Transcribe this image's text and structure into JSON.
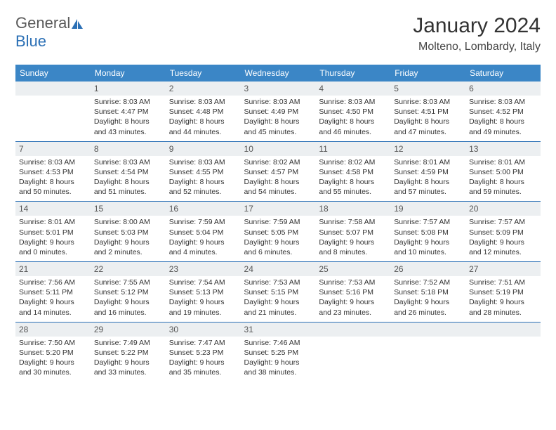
{
  "logo": {
    "t1": "General",
    "t2": "Blue"
  },
  "title": "January 2024",
  "location": "Molteno, Lombardy, Italy",
  "colors": {
    "header_bg": "#3b86c6",
    "header_text": "#ffffff",
    "daynum_bg": "#eceff1",
    "border": "#2a6fb5",
    "text": "#333333"
  },
  "weekdays": [
    "Sunday",
    "Monday",
    "Tuesday",
    "Wednesday",
    "Thursday",
    "Friday",
    "Saturday"
  ],
  "weeks": [
    [
      null,
      {
        "n": "1",
        "sr": "8:03 AM",
        "ss": "4:47 PM",
        "dl": "8 hours and 43 minutes."
      },
      {
        "n": "2",
        "sr": "8:03 AM",
        "ss": "4:48 PM",
        "dl": "8 hours and 44 minutes."
      },
      {
        "n": "3",
        "sr": "8:03 AM",
        "ss": "4:49 PM",
        "dl": "8 hours and 45 minutes."
      },
      {
        "n": "4",
        "sr": "8:03 AM",
        "ss": "4:50 PM",
        "dl": "8 hours and 46 minutes."
      },
      {
        "n": "5",
        "sr": "8:03 AM",
        "ss": "4:51 PM",
        "dl": "8 hours and 47 minutes."
      },
      {
        "n": "6",
        "sr": "8:03 AM",
        "ss": "4:52 PM",
        "dl": "8 hours and 49 minutes."
      }
    ],
    [
      {
        "n": "7",
        "sr": "8:03 AM",
        "ss": "4:53 PM",
        "dl": "8 hours and 50 minutes."
      },
      {
        "n": "8",
        "sr": "8:03 AM",
        "ss": "4:54 PM",
        "dl": "8 hours and 51 minutes."
      },
      {
        "n": "9",
        "sr": "8:03 AM",
        "ss": "4:55 PM",
        "dl": "8 hours and 52 minutes."
      },
      {
        "n": "10",
        "sr": "8:02 AM",
        "ss": "4:57 PM",
        "dl": "8 hours and 54 minutes."
      },
      {
        "n": "11",
        "sr": "8:02 AM",
        "ss": "4:58 PM",
        "dl": "8 hours and 55 minutes."
      },
      {
        "n": "12",
        "sr": "8:01 AM",
        "ss": "4:59 PM",
        "dl": "8 hours and 57 minutes."
      },
      {
        "n": "13",
        "sr": "8:01 AM",
        "ss": "5:00 PM",
        "dl": "8 hours and 59 minutes."
      }
    ],
    [
      {
        "n": "14",
        "sr": "8:01 AM",
        "ss": "5:01 PM",
        "dl": "9 hours and 0 minutes."
      },
      {
        "n": "15",
        "sr": "8:00 AM",
        "ss": "5:03 PM",
        "dl": "9 hours and 2 minutes."
      },
      {
        "n": "16",
        "sr": "7:59 AM",
        "ss": "5:04 PM",
        "dl": "9 hours and 4 minutes."
      },
      {
        "n": "17",
        "sr": "7:59 AM",
        "ss": "5:05 PM",
        "dl": "9 hours and 6 minutes."
      },
      {
        "n": "18",
        "sr": "7:58 AM",
        "ss": "5:07 PM",
        "dl": "9 hours and 8 minutes."
      },
      {
        "n": "19",
        "sr": "7:57 AM",
        "ss": "5:08 PM",
        "dl": "9 hours and 10 minutes."
      },
      {
        "n": "20",
        "sr": "7:57 AM",
        "ss": "5:09 PM",
        "dl": "9 hours and 12 minutes."
      }
    ],
    [
      {
        "n": "21",
        "sr": "7:56 AM",
        "ss": "5:11 PM",
        "dl": "9 hours and 14 minutes."
      },
      {
        "n": "22",
        "sr": "7:55 AM",
        "ss": "5:12 PM",
        "dl": "9 hours and 16 minutes."
      },
      {
        "n": "23",
        "sr": "7:54 AM",
        "ss": "5:13 PM",
        "dl": "9 hours and 19 minutes."
      },
      {
        "n": "24",
        "sr": "7:53 AM",
        "ss": "5:15 PM",
        "dl": "9 hours and 21 minutes."
      },
      {
        "n": "25",
        "sr": "7:53 AM",
        "ss": "5:16 PM",
        "dl": "9 hours and 23 minutes."
      },
      {
        "n": "26",
        "sr": "7:52 AM",
        "ss": "5:18 PM",
        "dl": "9 hours and 26 minutes."
      },
      {
        "n": "27",
        "sr": "7:51 AM",
        "ss": "5:19 PM",
        "dl": "9 hours and 28 minutes."
      }
    ],
    [
      {
        "n": "28",
        "sr": "7:50 AM",
        "ss": "5:20 PM",
        "dl": "9 hours and 30 minutes."
      },
      {
        "n": "29",
        "sr": "7:49 AM",
        "ss": "5:22 PM",
        "dl": "9 hours and 33 minutes."
      },
      {
        "n": "30",
        "sr": "7:47 AM",
        "ss": "5:23 PM",
        "dl": "9 hours and 35 minutes."
      },
      {
        "n": "31",
        "sr": "7:46 AM",
        "ss": "5:25 PM",
        "dl": "9 hours and 38 minutes."
      },
      null,
      null,
      null
    ]
  ],
  "labels": {
    "sunrise": "Sunrise: ",
    "sunset": "Sunset: ",
    "daylight": "Daylight: "
  }
}
